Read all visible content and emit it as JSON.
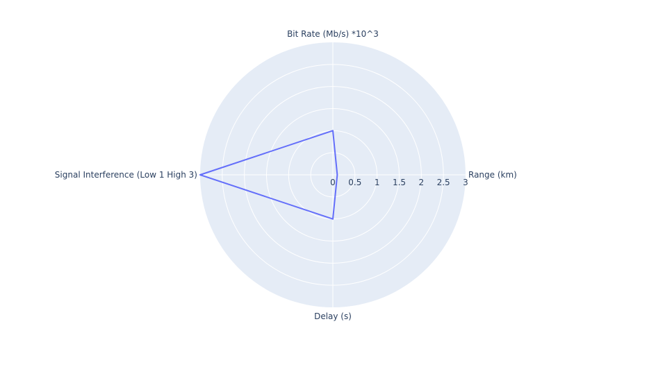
{
  "chart_data": {
    "type": "radar",
    "axes": [
      "Range (km)",
      "Bit Rate (Mb/s) *10^3",
      "Signal Interference (Low 1 High 3)",
      "Delay (s)"
    ],
    "radial_range": [
      0,
      3
    ],
    "radial_ticks": [
      "0",
      "0.5",
      "1",
      "1.5",
      "2",
      "2.5",
      "3"
    ],
    "series": [
      {
        "values": [
          0.1,
          1,
          3,
          1
        ]
      }
    ],
    "colors": {
      "polar_background": "#e5ecf6",
      "grid": "#ffffff",
      "series_line": "#636efa",
      "text": "#2a3f5f"
    }
  }
}
